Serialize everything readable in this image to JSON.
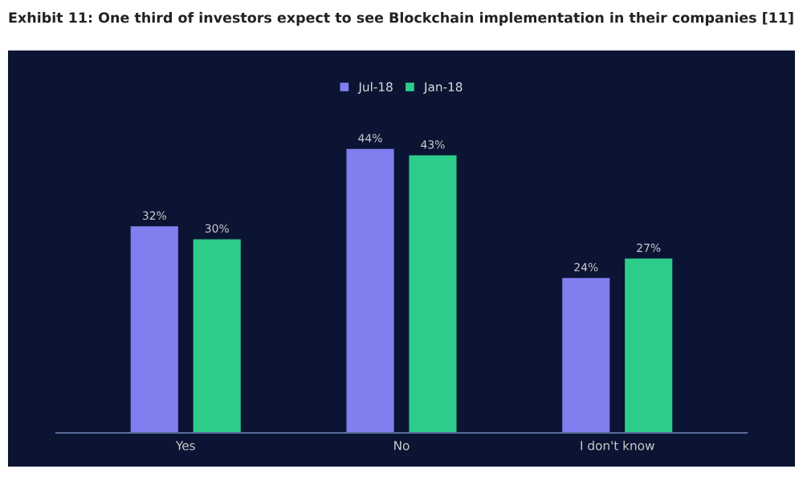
{
  "chart_data": {
    "type": "bar",
    "title": "Exhibit 11: One third of investors expect to see Blockchain implementation in their companies [11]",
    "categories": [
      "Yes",
      "No",
      "I don't know"
    ],
    "series": [
      {
        "name": "Jul-18",
        "color": "#7f7ff0",
        "values": [
          32,
          44,
          24
        ],
        "value_labels": [
          "32%",
          "44%",
          "24%"
        ]
      },
      {
        "name": "Jan-18",
        "color": "#2ecc8a",
        "values": [
          30,
          43,
          27
        ],
        "value_labels": [
          "30%",
          "43%",
          "27%"
        ]
      }
    ],
    "legend": "top",
    "grid": false
  }
}
